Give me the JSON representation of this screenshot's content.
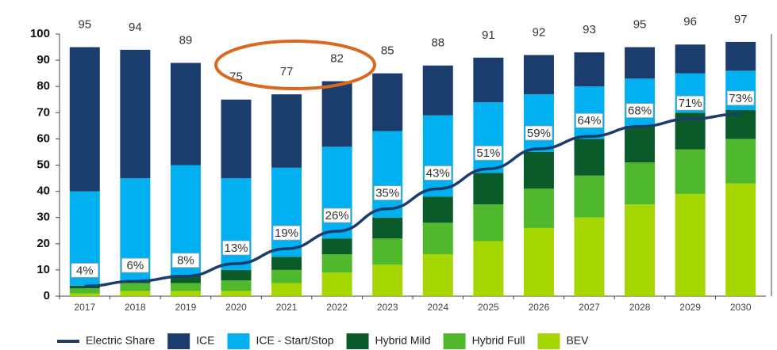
{
  "chart_data": {
    "type": "bar",
    "categories": [
      "2017",
      "2018",
      "2019",
      "2020",
      "2021",
      "2022",
      "2023",
      "2024",
      "2025",
      "2026",
      "2027",
      "2028",
      "2029",
      "2030"
    ],
    "totals": [
      95,
      94,
      89,
      75,
      77,
      82,
      85,
      88,
      91,
      92,
      93,
      95,
      96,
      97
    ],
    "series": [
      {
        "name": "Electric Share",
        "type": "line",
        "axis": "y2",
        "color": "#1b3d6e",
        "values": [
          4,
          6,
          8,
          13,
          19,
          26,
          35,
          43,
          51,
          59,
          64,
          68,
          71,
          73
        ],
        "value_labels": [
          "4%",
          "6%",
          "8%",
          "13%",
          "19%",
          "26%",
          "35%",
          "43%",
          "51%",
          "59%",
          "64%",
          "68%",
          "71%",
          "73%"
        ]
      },
      {
        "name": "ICE",
        "color": "#1b3d6e",
        "values": [
          55,
          49,
          39,
          30,
          28,
          25,
          22,
          19,
          17,
          15,
          13,
          12,
          11,
          11
        ]
      },
      {
        "name": "ICE - Start/Stop",
        "color": "#00b0f0",
        "values": [
          36,
          39,
          42,
          35,
          34,
          35,
          33,
          31,
          27,
          22,
          20,
          18,
          15,
          15
        ]
      },
      {
        "name": "Hybrid Mild",
        "color": "#0b5a2a",
        "values": [
          1,
          1,
          3,
          4,
          5,
          6,
          8,
          10,
          12,
          14,
          14,
          14,
          14,
          11
        ]
      },
      {
        "name": "Hybrid Full",
        "color": "#4fb82c",
        "values": [
          2,
          3,
          3,
          4,
          5,
          7,
          10,
          12,
          14,
          15,
          16,
          16,
          17,
          17
        ]
      },
      {
        "name": "BEV",
        "color": "#a6d600",
        "values": [
          1,
          2,
          2,
          2,
          5,
          9,
          12,
          16,
          21,
          26,
          30,
          35,
          39,
          43
        ]
      }
    ],
    "ylim": [
      0,
      100
    ],
    "yticks": [
      0,
      10,
      20,
      30,
      40,
      50,
      60,
      70,
      80,
      90,
      100
    ],
    "y2lim": [
      0,
      105
    ],
    "grid": false,
    "legend": "bottom"
  }
}
